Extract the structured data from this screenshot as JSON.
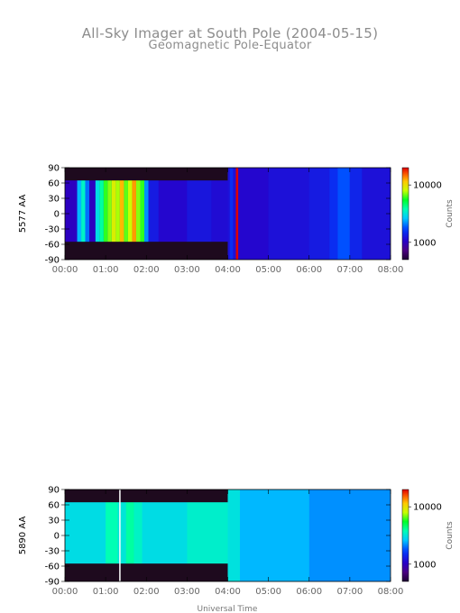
{
  "chart_data": {
    "type": "heatmap",
    "title": "All-Sky Imager at South Pole (2004-05-15)",
    "subtitle": "Geomagnetic Pole-Equator",
    "xlabel": "Universal Time",
    "x_ticks": [
      "00:00",
      "01:00",
      "02:00",
      "03:00",
      "04:00",
      "05:00",
      "06:00",
      "07:00",
      "08:00"
    ],
    "x_range_hours": [
      0,
      8
    ],
    "y_ticks": [
      "90",
      "60",
      "30",
      "0",
      "-30",
      "-60",
      "-90"
    ],
    "y_range": [
      -90,
      90
    ],
    "colorbar_scale": "log",
    "panels": [
      {
        "ylabel": "5577 AA",
        "colorbar_label": "Counts",
        "colorbar_ticks": [
          {
            "label": "10000",
            "value": 10000
          },
          {
            "label": "1000",
            "value": 1000
          }
        ],
        "colorbar_range": [
          500,
          20000
        ],
        "background_counts": 1200,
        "masked_regions": [
          {
            "x_start_h": 0,
            "x_end_h": 4.0,
            "y_min": 65,
            "y_max": 90
          },
          {
            "x_start_h": 0,
            "x_end_h": 4.0,
            "y_min": -90,
            "y_max": -55
          }
        ],
        "bands": [
          {
            "x_start_h": 0.0,
            "x_end_h": 0.3,
            "counts": 1000
          },
          {
            "x_start_h": 0.3,
            "x_end_h": 0.4,
            "counts": 2500
          },
          {
            "x_start_h": 0.4,
            "x_end_h": 0.5,
            "counts": 3500
          },
          {
            "x_start_h": 0.5,
            "x_end_h": 0.6,
            "counts": 2000
          },
          {
            "x_start_h": 0.6,
            "x_end_h": 0.75,
            "counts": 1000
          },
          {
            "x_start_h": 0.75,
            "x_end_h": 0.85,
            "counts": 3000
          },
          {
            "x_start_h": 0.85,
            "x_end_h": 0.95,
            "counts": 4000
          },
          {
            "x_start_h": 0.95,
            "x_end_h": 1.05,
            "counts": 6000
          },
          {
            "x_start_h": 1.05,
            "x_end_h": 1.15,
            "counts": 7000
          },
          {
            "x_start_h": 1.15,
            "x_end_h": 1.25,
            "counts": 9000
          },
          {
            "x_start_h": 1.25,
            "x_end_h": 1.35,
            "counts": 7500
          },
          {
            "x_start_h": 1.35,
            "x_end_h": 1.45,
            "counts": 12000
          },
          {
            "x_start_h": 1.45,
            "x_end_h": 1.55,
            "counts": 6500
          },
          {
            "x_start_h": 1.55,
            "x_end_h": 1.65,
            "counts": 8000
          },
          {
            "x_start_h": 1.65,
            "x_end_h": 1.75,
            "counts": 13000
          },
          {
            "x_start_h": 1.75,
            "x_end_h": 1.85,
            "counts": 7000
          },
          {
            "x_start_h": 1.85,
            "x_end_h": 1.95,
            "counts": 6000
          },
          {
            "x_start_h": 1.95,
            "x_end_h": 2.05,
            "counts": 2200
          },
          {
            "x_start_h": 2.05,
            "x_end_h": 2.3,
            "counts": 1300
          },
          {
            "x_start_h": 2.3,
            "x_end_h": 3.0,
            "counts": 1100
          },
          {
            "x_start_h": 3.0,
            "x_end_h": 3.6,
            "counts": 1250
          },
          {
            "x_start_h": 3.6,
            "x_end_h": 4.0,
            "counts": 1150
          },
          {
            "x_start_h": 4.05,
            "x_end_h": 4.13,
            "counts": 1500
          },
          {
            "x_start_h": 4.2,
            "x_end_h": 4.26,
            "counts": 20000
          },
          {
            "x_start_h": 4.26,
            "x_end_h": 5.0,
            "counts": 1100
          },
          {
            "x_start_h": 5.0,
            "x_end_h": 6.0,
            "counts": 1200
          },
          {
            "x_start_h": 6.0,
            "x_end_h": 6.5,
            "counts": 1300
          },
          {
            "x_start_h": 6.5,
            "x_end_h": 6.7,
            "counts": 1500
          },
          {
            "x_start_h": 6.7,
            "x_end_h": 7.0,
            "counts": 1800
          },
          {
            "x_start_h": 7.0,
            "x_end_h": 7.3,
            "counts": 1400
          },
          {
            "x_start_h": 7.3,
            "x_end_h": 8.0,
            "counts": 1200
          }
        ],
        "vertical_lines": []
      },
      {
        "ylabel": "5890 AA",
        "colorbar_label": "Counts",
        "colorbar_ticks": [
          {
            "label": "10000",
            "value": 10000
          },
          {
            "label": "1000",
            "value": 1000
          }
        ],
        "colorbar_range": [
          500,
          20000
        ],
        "background_counts": 2800,
        "masked_regions": [
          {
            "x_start_h": 0,
            "x_end_h": 4.0,
            "y_min": 65,
            "y_max": 90
          },
          {
            "x_start_h": 0,
            "x_end_h": 4.0,
            "y_min": -90,
            "y_max": -55
          }
        ],
        "bands": [
          {
            "x_start_h": 0.0,
            "x_end_h": 1.0,
            "counts": 3000
          },
          {
            "x_start_h": 1.0,
            "x_end_h": 1.3,
            "counts": 3800
          },
          {
            "x_start_h": 1.3,
            "x_end_h": 1.5,
            "counts": 3200
          },
          {
            "x_start_h": 1.5,
            "x_end_h": 1.7,
            "counts": 4000
          },
          {
            "x_start_h": 1.7,
            "x_end_h": 1.9,
            "counts": 3500
          },
          {
            "x_start_h": 1.9,
            "x_end_h": 3.0,
            "counts": 3000
          },
          {
            "x_start_h": 3.0,
            "x_end_h": 4.0,
            "counts": 3400
          },
          {
            "x_start_h": 4.0,
            "x_end_h": 4.3,
            "counts": 3100
          },
          {
            "x_start_h": 4.3,
            "x_end_h": 6.0,
            "counts": 2500
          },
          {
            "x_start_h": 6.0,
            "x_end_h": 8.0,
            "counts": 2200
          }
        ],
        "vertical_lines": [
          {
            "x_h": 1.35
          }
        ]
      }
    ]
  }
}
